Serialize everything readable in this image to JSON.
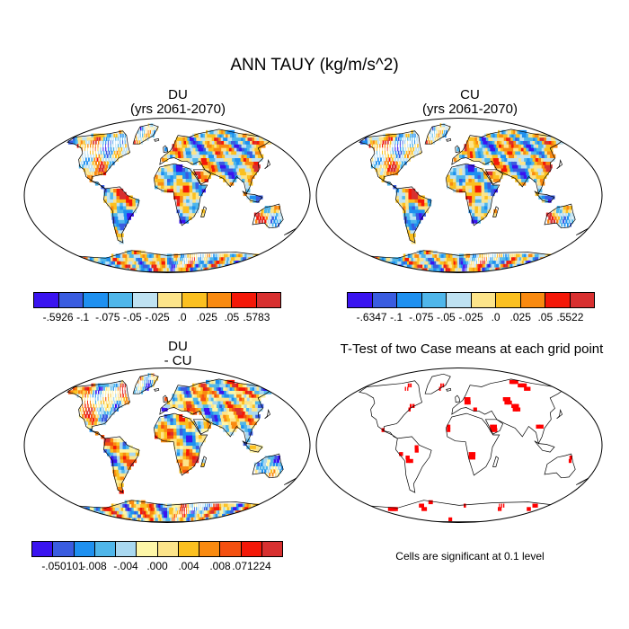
{
  "title": "ANN TAUY (kg/m/s^2)",
  "panels": [
    {
      "id": "du",
      "title_line1": "DU",
      "title_line2": "(yrs 2061-2070)",
      "colorbar": {
        "colors": [
          "#3a14f0",
          "#3a5ce0",
          "#1e90f0",
          "#4fb6ea",
          "#bfe2f2",
          "#fce48a",
          "#fbc020",
          "#f98a10",
          "#f41808",
          "#d83030"
        ],
        "labels": [
          "-.5926",
          "-.1",
          "-.075",
          "-.05",
          "-.025",
          ".0",
          ".025",
          ".05",
          ".5783"
        ]
      }
    },
    {
      "id": "cu",
      "title_line1": "CU",
      "title_line2": "(yrs 2061-2070)",
      "colorbar": {
        "colors": [
          "#3a14f0",
          "#3a5ce0",
          "#1e90f0",
          "#4fb6ea",
          "#bfe2f2",
          "#fce48a",
          "#fbc020",
          "#f98a10",
          "#f41808",
          "#d83030"
        ],
        "labels": [
          "-.6347",
          "-.1",
          "-.075",
          "-.05",
          "-.025",
          ".0",
          ".025",
          ".05",
          ".5522"
        ]
      }
    },
    {
      "id": "diff",
      "title_line1": "DU",
      "title_line2": "- CU",
      "colorbar": {
        "colors": [
          "#3a14f0",
          "#3a5ce0",
          "#1e90f0",
          "#4fb6ea",
          "#a9d8f0",
          "#fdf6a8",
          "#fce48a",
          "#fbc020",
          "#f98a10",
          "#f45010",
          "#f41808",
          "#d83030"
        ],
        "labels": [
          "-.050101",
          "-.008",
          "-.004",
          ".000",
          ".004",
          ".008",
          ".071224"
        ]
      }
    },
    {
      "id": "ttest",
      "title_line1": "T-Test of two Case means at each grid point",
      "note": "Cells are significant at 0.1 level",
      "significance_color": "#ff0000"
    }
  ]
}
